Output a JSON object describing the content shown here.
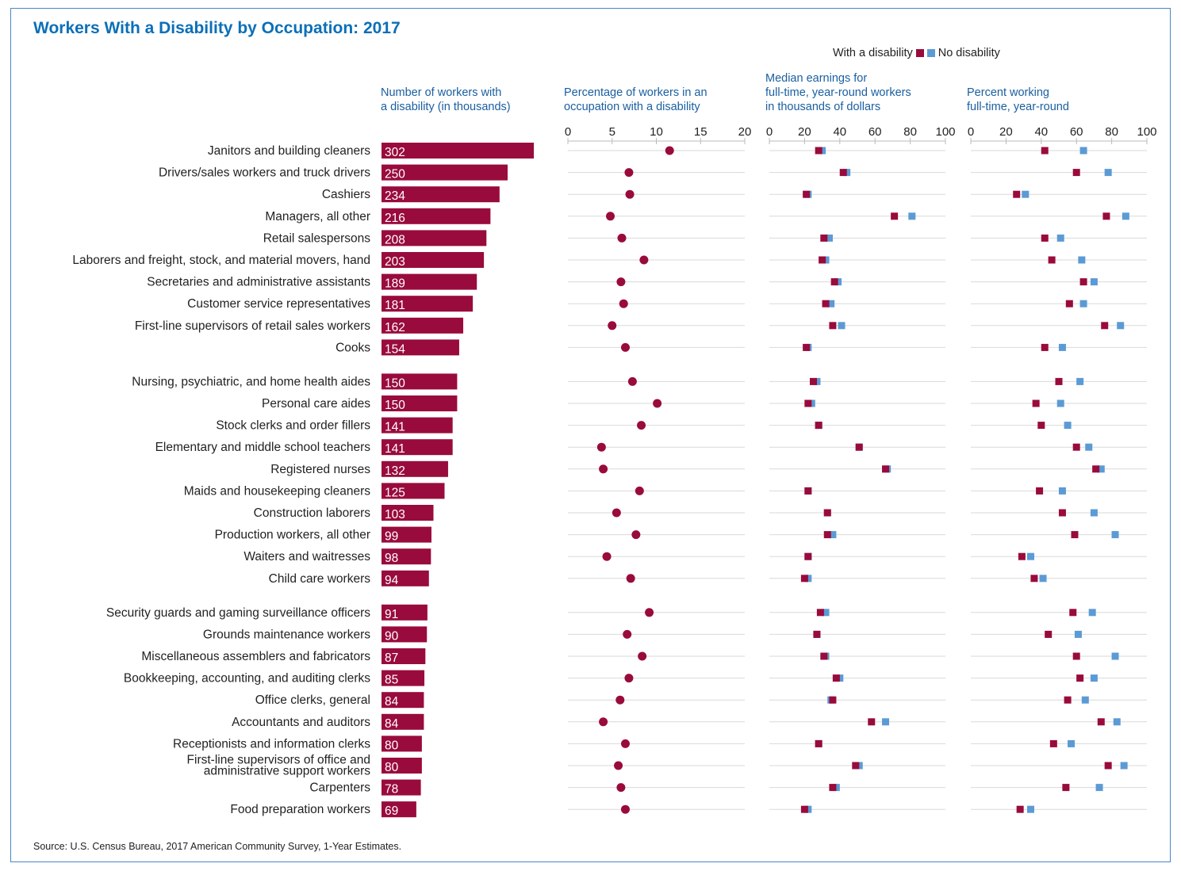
{
  "title": "Workers With a Disability by Occupation: 2017",
  "source": "Source: U.S. Census Bureau, 2017 American Community Survey, 1-Year Estimates.",
  "legend": {
    "disability": "With a disability",
    "no_disability": "No disability"
  },
  "colors": {
    "disability": "#990b3c",
    "no_disability": "#5b9bd5",
    "title": "#0b6fb8",
    "header": "#1a5fa0",
    "grid": "#d9d9d9"
  },
  "chart_data": [
    {
      "type": "bar",
      "title": "Number of workers with\na disability (in thousands)",
      "categories": [
        "Janitors and building cleaners",
        "Drivers/sales workers and truck drivers",
        "Cashiers",
        "Managers, all other",
        "Retail salespersons",
        "Laborers and freight, stock, and material movers, hand",
        "Secretaries and administrative assistants",
        "Customer service representatives",
        "First-line supervisors of retail sales workers",
        "Cooks",
        "Nursing, psychiatric, and home health aides",
        "Personal care aides",
        "Stock clerks and order fillers",
        "Elementary and middle school teachers",
        "Registered nurses",
        "Maids and housekeeping cleaners",
        "Construction laborers",
        "Production workers, all other",
        "Waiters and waitresses",
        "Child care workers",
        "Security guards and gaming surveillance officers",
        "Grounds maintenance workers",
        "Miscellaneous assemblers and fabricators",
        "Bookkeeping, accounting, and auditing clerks",
        "Office clerks, general",
        "Accountants and auditors",
        "Receptionists and information clerks",
        "First-line supervisors of office and\nadministrative support workers",
        "Carpenters",
        "Food preparation workers"
      ],
      "values": [
        302,
        250,
        234,
        216,
        208,
        203,
        189,
        181,
        162,
        154,
        150,
        150,
        141,
        141,
        132,
        125,
        103,
        99,
        98,
        94,
        91,
        90,
        87,
        85,
        84,
        84,
        80,
        80,
        78,
        69
      ]
    },
    {
      "type": "scatter",
      "title": "Percentage of workers in an\noccupation with a disability",
      "xlim": [
        0,
        20
      ],
      "xticks": [
        0,
        5,
        10,
        15,
        20
      ],
      "values": [
        11.5,
        6.9,
        7.0,
        4.8,
        6.1,
        8.6,
        6.0,
        6.3,
        5.0,
        6.5,
        7.3,
        10.1,
        8.3,
        3.8,
        4.0,
        8.1,
        5.5,
        7.7,
        4.4,
        7.1,
        9.2,
        6.7,
        8.4,
        6.9,
        5.9,
        4.0,
        6.5,
        5.7,
        6.0,
        6.5
      ]
    },
    {
      "type": "scatter",
      "title": "Median earnings for\nfull-time, year-round workers\nin thousands of dollars",
      "xlim": [
        0,
        100
      ],
      "xticks": [
        0,
        20,
        40,
        60,
        80,
        100
      ],
      "series": [
        {
          "name": "With a disability",
          "values": [
            28,
            42,
            21,
            71,
            31,
            30,
            37,
            32,
            36,
            21,
            25,
            22,
            28,
            51,
            66,
            22,
            33,
            33,
            22,
            20,
            29,
            27,
            31,
            38,
            36,
            58,
            28,
            49,
            36,
            20
          ]
        },
        {
          "name": "No disability",
          "values": [
            30,
            44,
            22,
            81,
            34,
            32,
            39,
            35,
            41,
            22,
            27,
            24,
            28,
            51,
            67,
            22,
            33,
            36,
            22,
            22,
            32,
            27,
            32,
            40,
            35,
            66,
            28,
            51,
            38,
            22
          ]
        }
      ]
    },
    {
      "type": "scatter",
      "title": "Percent working\nfull-time, year-round",
      "xlim": [
        0,
        100
      ],
      "xticks": [
        0,
        20,
        40,
        60,
        80,
        100
      ],
      "series": [
        {
          "name": "With a disability",
          "values": [
            42,
            60,
            26,
            77,
            42,
            46,
            64,
            56,
            76,
            42,
            50,
            37,
            40,
            60,
            71,
            39,
            52,
            59,
            29,
            36,
            58,
            44,
            60,
            62,
            55,
            74,
            47,
            78,
            54,
            28
          ]
        },
        {
          "name": "No disability",
          "values": [
            64,
            78,
            31,
            88,
            51,
            63,
            70,
            64,
            85,
            52,
            62,
            51,
            55,
            67,
            74,
            52,
            70,
            82,
            34,
            41,
            69,
            61,
            82,
            70,
            65,
            83,
            57,
            87,
            73,
            34
          ]
        }
      ]
    }
  ]
}
